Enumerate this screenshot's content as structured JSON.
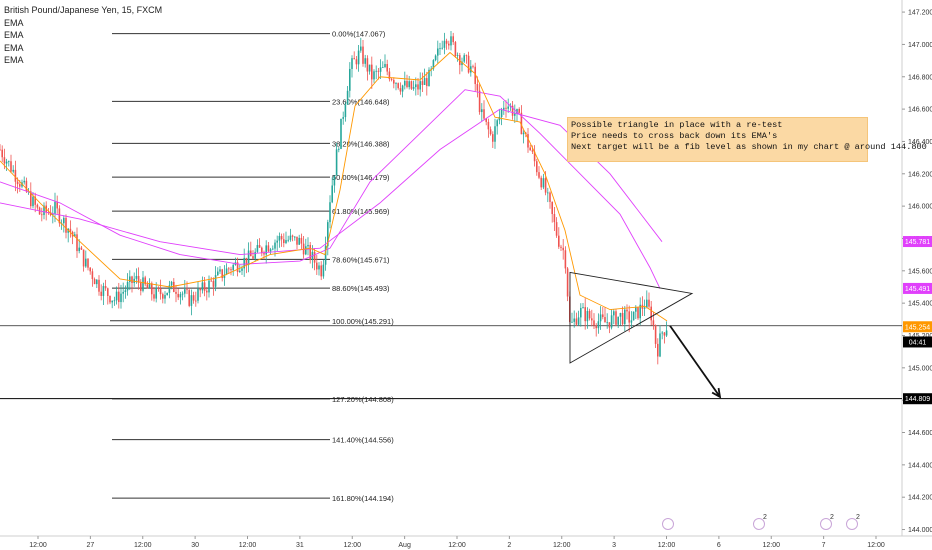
{
  "header": {
    "symbol": "British Pound/Japanese Yen, 15, FXCM",
    "indicators": [
      "EMA",
      "EMA",
      "EMA",
      "EMA"
    ]
  },
  "note": {
    "lines": [
      "Possible triangle in place with a re-test",
      "Price needs to cross back down its EMA's",
      "Next target will be a fib level as shown in my chart @ around 144.800"
    ]
  },
  "events": [
    {
      "icon": "calendar-event-icon",
      "count": ""
    },
    {
      "icon": "calendar-event-icon",
      "count": "2"
    },
    {
      "icon": "calendar-event-icon",
      "count": "2"
    },
    {
      "icon": "calendar-event-icon",
      "count": "2"
    }
  ],
  "colors": {
    "up": "#26a69a",
    "down": "#ef5350",
    "ema_fast": "#ff9800",
    "ema_slow": "#e040fb",
    "fib": "#333333",
    "note_bg": "#fbd9a4"
  },
  "chart_data": {
    "type": "candlestick",
    "symbol": "British Pound/Japanese Yen",
    "interval": "15",
    "ylim": [
      143.96,
      147.25
    ],
    "y_ticks": [
      "147.200",
      "147.000",
      "146.800",
      "146.600",
      "146.400",
      "146.200",
      "146.000",
      "145.800",
      "145.600",
      "145.400",
      "145.200",
      "145.000",
      "144.800",
      "144.600",
      "144.400",
      "144.200",
      "144.000"
    ],
    "x_ticks": [
      "12:00",
      "27",
      "12:00",
      "30",
      "12:00",
      "31",
      "12:00",
      "Aug",
      "12:00",
      "2",
      "12:00",
      "3",
      "12:00",
      "6",
      "12:00",
      "7",
      "12:00"
    ],
    "price_labels": [
      {
        "label": "145.781",
        "color": "#e040fb"
      },
      {
        "label": "145.491",
        "color": "#e040fb"
      },
      {
        "label": "145.254",
        "color": "#ff9800"
      },
      {
        "label": "04:41",
        "color": "#000000"
      },
      {
        "label": "144.809",
        "color": "#000000"
      }
    ],
    "fib_levels": [
      {
        "label": "0.00%(147.067)",
        "price": 147.067
      },
      {
        "label": "23.60%(146.648)",
        "price": 146.648
      },
      {
        "label": "38.20%(146.388)",
        "price": 146.388
      },
      {
        "label": "50.00%(146.179)",
        "price": 146.179
      },
      {
        "label": "61.80%(145.969)",
        "price": 145.969
      },
      {
        "label": "78.60%(145.671)",
        "price": 145.671
      },
      {
        "label": "88.60%(145.493)",
        "price": 145.493
      },
      {
        "label": "100.00%(145.291)",
        "price": 145.291
      },
      {
        "label": "127.20%(144.808)",
        "price": 144.808
      },
      {
        "label": "141.40%(144.556)",
        "price": 144.556
      },
      {
        "label": "161.80%(144.194)",
        "price": 144.194
      }
    ],
    "horizontal_lines": [
      145.26,
      144.81
    ],
    "price_path": [
      {
        "t": 0,
        "p": 146.35
      },
      {
        "t": 12,
        "p": 146.23
      },
      {
        "t": 25,
        "p": 146.1
      },
      {
        "t": 40,
        "p": 145.95
      },
      {
        "t": 55,
        "p": 145.98
      },
      {
        "t": 70,
        "p": 145.85
      },
      {
        "t": 85,
        "p": 145.65
      },
      {
        "t": 100,
        "p": 145.5
      },
      {
        "t": 115,
        "p": 145.42
      },
      {
        "t": 135,
        "p": 145.55
      },
      {
        "t": 155,
        "p": 145.45
      },
      {
        "t": 175,
        "p": 145.5
      },
      {
        "t": 190,
        "p": 145.42
      },
      {
        "t": 210,
        "p": 145.52
      },
      {
        "t": 230,
        "p": 145.62
      },
      {
        "t": 250,
        "p": 145.68
      },
      {
        "t": 265,
        "p": 145.75
      },
      {
        "t": 280,
        "p": 145.8
      },
      {
        "t": 300,
        "p": 145.78
      },
      {
        "t": 312,
        "p": 145.68
      },
      {
        "t": 322,
        "p": 145.6
      },
      {
        "t": 330,
        "p": 146.05
      },
      {
        "t": 340,
        "p": 146.45
      },
      {
        "t": 350,
        "p": 146.85
      },
      {
        "t": 360,
        "p": 146.95
      },
      {
        "t": 372,
        "p": 146.8
      },
      {
        "t": 385,
        "p": 146.85
      },
      {
        "t": 400,
        "p": 146.75
      },
      {
        "t": 415,
        "p": 146.72
      },
      {
        "t": 430,
        "p": 146.8
      },
      {
        "t": 445,
        "p": 147.07
      },
      {
        "t": 460,
        "p": 146.92
      },
      {
        "t": 472,
        "p": 146.85
      },
      {
        "t": 482,
        "p": 146.55
      },
      {
        "t": 492,
        "p": 146.42
      },
      {
        "t": 505,
        "p": 146.65
      },
      {
        "t": 518,
        "p": 146.55
      },
      {
        "t": 530,
        "p": 146.35
      },
      {
        "t": 545,
        "p": 146.1
      },
      {
        "t": 558,
        "p": 145.8
      },
      {
        "t": 565,
        "p": 145.7
      },
      {
        "t": 570,
        "p": 145.25
      },
      {
        "t": 580,
        "p": 145.35
      },
      {
        "t": 592,
        "p": 145.3
      },
      {
        "t": 605,
        "p": 145.28
      },
      {
        "t": 620,
        "p": 145.32
      },
      {
        "t": 632,
        "p": 145.3
      },
      {
        "t": 645,
        "p": 145.4
      },
      {
        "t": 652,
        "p": 145.32
      },
      {
        "t": 657,
        "p": 145.1
      },
      {
        "t": 662,
        "p": 145.22
      },
      {
        "t": 667,
        "p": 145.26
      }
    ],
    "ema_fast_path": [
      {
        "t": 0,
        "p": 146.28
      },
      {
        "t": 40,
        "p": 146.02
      },
      {
        "t": 80,
        "p": 145.78
      },
      {
        "t": 120,
        "p": 145.55
      },
      {
        "t": 170,
        "p": 145.5
      },
      {
        "t": 220,
        "p": 145.56
      },
      {
        "t": 270,
        "p": 145.7
      },
      {
        "t": 310,
        "p": 145.74
      },
      {
        "t": 325,
        "p": 145.7
      },
      {
        "t": 340,
        "p": 146.1
      },
      {
        "t": 355,
        "p": 146.62
      },
      {
        "t": 380,
        "p": 146.8
      },
      {
        "t": 420,
        "p": 146.78
      },
      {
        "t": 450,
        "p": 146.95
      },
      {
        "t": 475,
        "p": 146.82
      },
      {
        "t": 495,
        "p": 146.55
      },
      {
        "t": 520,
        "p": 146.52
      },
      {
        "t": 545,
        "p": 146.2
      },
      {
        "t": 565,
        "p": 145.85
      },
      {
        "t": 580,
        "p": 145.45
      },
      {
        "t": 610,
        "p": 145.36
      },
      {
        "t": 645,
        "p": 145.38
      },
      {
        "t": 667,
        "p": 145.29
      }
    ],
    "ema_slow_path": [
      {
        "t": 0,
        "p": 146.15
      },
      {
        "t": 60,
        "p": 146.02
      },
      {
        "t": 120,
        "p": 145.82
      },
      {
        "t": 180,
        "p": 145.7
      },
      {
        "t": 240,
        "p": 145.64
      },
      {
        "t": 300,
        "p": 145.66
      },
      {
        "t": 330,
        "p": 145.74
      },
      {
        "t": 370,
        "p": 146.15
      },
      {
        "t": 420,
        "p": 146.45
      },
      {
        "t": 465,
        "p": 146.72
      },
      {
        "t": 500,
        "p": 146.68
      },
      {
        "t": 540,
        "p": 146.45
      },
      {
        "t": 580,
        "p": 146.2
      },
      {
        "t": 620,
        "p": 145.95
      },
      {
        "t": 650,
        "p": 145.62
      },
      {
        "t": 660,
        "p": 145.49
      }
    ],
    "ema_slowest_path": [
      {
        "t": 0,
        "p": 146.02
      },
      {
        "t": 80,
        "p": 145.92
      },
      {
        "t": 160,
        "p": 145.78
      },
      {
        "t": 240,
        "p": 145.7
      },
      {
        "t": 320,
        "p": 145.74
      },
      {
        "t": 380,
        "p": 146.02
      },
      {
        "t": 440,
        "p": 146.35
      },
      {
        "t": 500,
        "p": 146.6
      },
      {
        "t": 560,
        "p": 146.5
      },
      {
        "t": 610,
        "p": 146.2
      },
      {
        "t": 662,
        "p": 145.78
      }
    ],
    "triangle": [
      {
        "t": 570,
        "p": 145.59
      },
      {
        "t": 570,
        "p": 145.03
      },
      {
        "t": 692,
        "p": 145.46
      }
    ],
    "arrow": [
      {
        "t": 670,
        "p": 145.26
      },
      {
        "t": 720,
        "p": 144.82
      }
    ]
  }
}
